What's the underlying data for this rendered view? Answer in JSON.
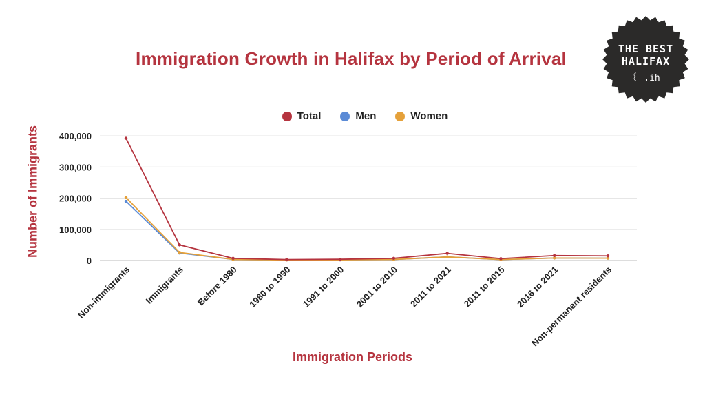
{
  "logo": {
    "line1": "THE BEST",
    "line2": "HALIFAX",
    "mark": "꒰ .ih"
  },
  "chart_data": {
    "type": "line",
    "title": "Immigration Growth in Halifax by Period of Arrival",
    "xlabel": "Immigration Periods",
    "ylabel": "Number of Immigrants",
    "categories": [
      "Non-immigrants",
      "Immigrants",
      "Before 1980",
      "1980 to 1990",
      "1991 to 2000",
      "2001 to 2010",
      "2011 to 2021",
      "2011 to 2015",
      "2016 to 2021",
      "Non-permanent residents"
    ],
    "yticks": [
      "0",
      "100,000",
      "200,000",
      "300,000",
      "400,000"
    ],
    "ylim": [
      0,
      400000
    ],
    "grid": true,
    "legend": "top-center",
    "series": [
      {
        "name": "Total",
        "color": "#b5343f",
        "values": [
          392000,
          50000,
          7000,
          3000,
          4000,
          7000,
          23000,
          6000,
          16000,
          15000
        ]
      },
      {
        "name": "Men",
        "color": "#5b8bd6",
        "values": [
          190000,
          24000,
          3500,
          1500,
          2000,
          3500,
          11500,
          3000,
          8000,
          7500
        ]
      },
      {
        "name": "Women",
        "color": "#e5a13a",
        "values": [
          202000,
          26000,
          3500,
          1500,
          2000,
          3500,
          11500,
          3000,
          8000,
          7500
        ]
      }
    ]
  }
}
